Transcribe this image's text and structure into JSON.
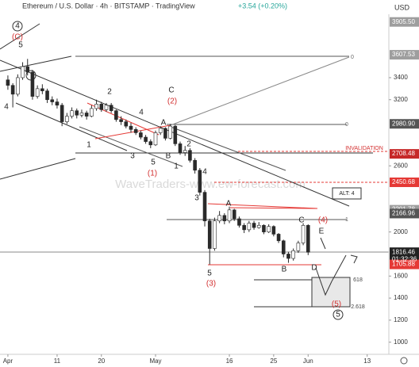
{
  "header": {
    "symbol": "Ethereum / U.S. Dollar · 4h · BITSTAMP · TradingView",
    "change": "+3.54 (+0.20%)",
    "currency": "USD"
  },
  "watermark": "WaveTraders-www.ew-forecast.com",
  "chart_data": {
    "type": "candlestick",
    "x": [
      0,
      1,
      2,
      3,
      4,
      5,
      6,
      7,
      8,
      9,
      10,
      11,
      12,
      13,
      14,
      15,
      16,
      17,
      18,
      19,
      20,
      21,
      22,
      23,
      24,
      25,
      26,
      27,
      28,
      29,
      30,
      31,
      32,
      33,
      34,
      35,
      36,
      37,
      38,
      39,
      40,
      41,
      42,
      43,
      44,
      45,
      46,
      47,
      48,
      49,
      50,
      51,
      52,
      53,
      54,
      55,
      56,
      57,
      58,
      59,
      60,
      61
    ],
    "open": [
      3380,
      3330,
      3250,
      3400,
      3500,
      3450,
      3230,
      3300,
      3280,
      3200,
      3180,
      3150,
      3000,
      3050,
      3100,
      3060,
      3080,
      3050,
      3120,
      3160,
      3110,
      3150,
      3100,
      3020,
      3000,
      2960,
      2930,
      2900,
      2860,
      2820,
      2790,
      2900,
      2940,
      2850,
      2960,
      2800,
      2720,
      2740,
      2650,
      2560,
      2360,
      2100,
      1850,
      2100,
      2150,
      2100,
      2200,
      2120,
      2060,
      2020,
      2080,
      2040,
      2060,
      2000,
      2050,
      1980,
      1920,
      1800,
      1760,
      1830,
      1900,
      2060
    ],
    "high": [
      3420,
      3350,
      3430,
      3540,
      3570,
      3470,
      3330,
      3340,
      3300,
      3230,
      3210,
      3170,
      3080,
      3130,
      3120,
      3110,
      3100,
      3150,
      3200,
      3180,
      3170,
      3170,
      3110,
      3050,
      3020,
      2990,
      2950,
      2920,
      2880,
      2840,
      2920,
      2960,
      2950,
      2980,
      2970,
      2820,
      2780,
      2760,
      2670,
      2580,
      2380,
      2120,
      2130,
      2190,
      2170,
      2230,
      2210,
      2140,
      2080,
      2100,
      2100,
      2090,
      2070,
      2070,
      2060,
      1990,
      1930,
      1820,
      1850,
      1920,
      2080,
      2070
    ],
    "low": [
      3290,
      3130,
      3230,
      3380,
      3420,
      3200,
      3210,
      3250,
      3170,
      3150,
      3120,
      2960,
      2980,
      3030,
      3030,
      3040,
      3020,
      3040,
      3100,
      3090,
      3090,
      3080,
      3000,
      2970,
      2940,
      2900,
      2880,
      2840,
      2800,
      2760,
      2780,
      2880,
      2830,
      2840,
      2780,
      2700,
      2690,
      2630,
      2530,
      2330,
      2050,
      1705,
      1830,
      2080,
      2070,
      2080,
      2100,
      2040,
      1990,
      2000,
      2020,
      2030,
      1980,
      1990,
      1960,
      1900,
      1770,
      1720,
      1740,
      1810,
      1880,
      1790
    ],
    "close": [
      3330,
      3250,
      3400,
      3500,
      3450,
      3230,
      3300,
      3280,
      3200,
      3180,
      3150,
      3000,
      3050,
      3100,
      3060,
      3080,
      3050,
      3120,
      3160,
      3110,
      3150,
      3100,
      3020,
      3000,
      2960,
      2930,
      2900,
      2860,
      2820,
      2790,
      2900,
      2940,
      2850,
      2960,
      2800,
      2720,
      2740,
      2650,
      2560,
      2360,
      2100,
      1850,
      2100,
      2150,
      2100,
      2200,
      2120,
      2060,
      2020,
      2080,
      2040,
      2060,
      2000,
      2050,
      1980,
      1920,
      1800,
      1760,
      1830,
      1900,
      2060,
      1816
    ],
    "up_color": "#ffffff",
    "down_color": "#2a2a2a",
    "wick_color": "#2a2a2a",
    "xlim": [
      -1.6,
      77.4
    ],
    "xticks": [
      {
        "value": 0,
        "label": "Apr"
      },
      {
        "value": 10,
        "label": "11"
      },
      {
        "value": 19,
        "label": "20"
      },
      {
        "value": 30,
        "label": "May"
      },
      {
        "value": 45,
        "label": "16"
      },
      {
        "value": 54,
        "label": "25"
      },
      {
        "value": 61,
        "label": "Jun"
      },
      {
        "value": 73,
        "label": "13"
      }
    ],
    "ylim": [
      890,
      3975
    ],
    "yticks": [
      1000,
      1200,
      1400,
      1600,
      2000,
      2600,
      3200,
      3400
    ],
    "price_labels": [
      {
        "value": 3905.5,
        "label": "3905.50",
        "color": "#9e9e9e"
      },
      {
        "value": 3607.53,
        "label": "3607.53",
        "color": "#9e9e9e"
      },
      {
        "value": 2980.9,
        "label": "2980.90",
        "color": "#555555"
      },
      {
        "value": 2708.48,
        "label": "2708.48",
        "color": "#c62828"
      },
      {
        "value": 2450.68,
        "label": "2450.68",
        "color": "#e53935"
      },
      {
        "value": 2201.78,
        "label": "2201.78",
        "color": "#9e9e9e"
      },
      {
        "value": 2166.96,
        "label": "2166.96",
        "color": "#555555"
      },
      {
        "value": 1816.46,
        "label": "1816.46",
        "color": "#222222"
      },
      {
        "value": 1705.88,
        "label": "1705.88",
        "color": "#e53935"
      }
    ],
    "countdown": "01:32:36",
    "annotations": [
      {
        "text": "4",
        "color": "#222",
        "circled": true
      },
      {
        "text": "(C)",
        "color": "#d32f2f"
      },
      {
        "text": "5",
        "color": "#222"
      },
      {
        "text": "4",
        "color": "#222"
      },
      {
        "text": "2",
        "color": "#222"
      },
      {
        "text": "4",
        "color": "#222"
      },
      {
        "text": "C",
        "color": "#222"
      },
      {
        "text": "(2)",
        "color": "#d32f2f"
      },
      {
        "text": "A",
        "color": "#222"
      },
      {
        "text": "1",
        "color": "#222"
      },
      {
        "text": "3",
        "color": "#222"
      },
      {
        "text": "5",
        "color": "#222"
      },
      {
        "text": "B",
        "color": "#222"
      },
      {
        "text": "2",
        "color": "#222"
      },
      {
        "text": "(1)",
        "color": "#d32f2f"
      },
      {
        "text": "1",
        "color": "#222"
      },
      {
        "text": "4",
        "color": "#222"
      },
      {
        "text": "3",
        "color": "#222"
      },
      {
        "text": "A",
        "color": "#222"
      },
      {
        "text": "C",
        "color": "#222"
      },
      {
        "text": "(4)",
        "color": "#d32f2f"
      },
      {
        "text": "E",
        "color": "#222"
      },
      {
        "text": "5",
        "color": "#222"
      },
      {
        "text": "(3)",
        "color": "#d32f2f"
      },
      {
        "text": "B",
        "color": "#222"
      },
      {
        "text": "D",
        "color": "#222"
      },
      {
        "text": "(5)",
        "color": "#d32f2f"
      },
      {
        "text": "5",
        "color": "#222",
        "circled": true
      },
      {
        "text": "0",
        "color": "#666"
      },
      {
        "text": "0",
        "color": "#666"
      },
      {
        "text": "1",
        "color": "#666"
      },
      {
        "text": "618",
        "color": "#444"
      },
      {
        "text": "2.618",
        "color": "#444"
      },
      {
        "text": "INVALIDATION",
        "color": "#d32f2f"
      },
      {
        "text": "ALT: 4",
        "color": "#222",
        "boxed": true
      }
    ]
  }
}
